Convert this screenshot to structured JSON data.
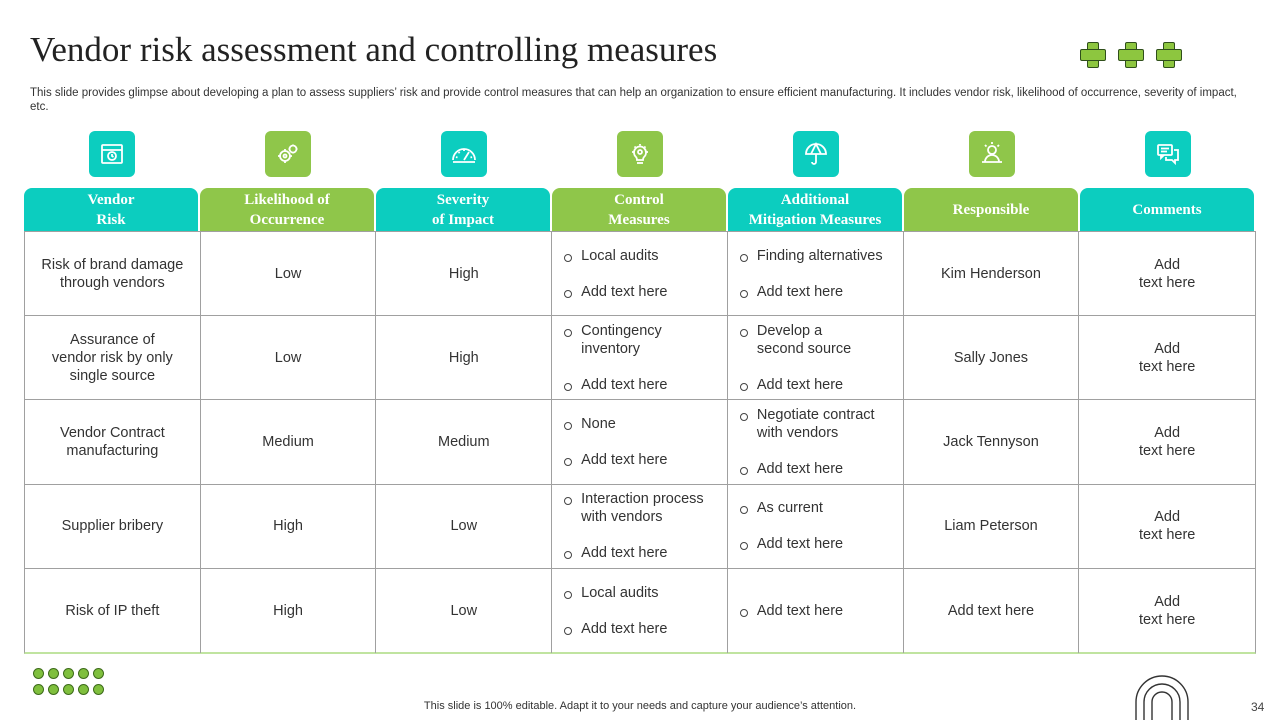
{
  "slide": {
    "title": "Vendor risk assessment and controlling measures",
    "subtitle": "This slide provides glimpse about developing a plan to assess suppliers’ risk and provide control measures that can help an organization to ensure efficient manufacturing. It includes vendor risk, likelihood of occurrence, severity of impact, etc.",
    "footer": "This slide is 100% editable. Adapt it to your needs and capture your audience’s attention.",
    "page_number": "34"
  },
  "colors": {
    "teal": "#0ccdbf",
    "green": "#8fc64a"
  },
  "columns": [
    {
      "label": "Vendor\nRisk",
      "color": "teal",
      "icon": "store-icon"
    },
    {
      "label": "Likelihood of\nOccurrence",
      "color": "green",
      "icon": "gears-icon"
    },
    {
      "label": "Severity\nof Impact",
      "color": "teal",
      "icon": "gauge-icon"
    },
    {
      "label": "Control\nMeasures",
      "color": "green",
      "icon": "lightbulb-gear-icon"
    },
    {
      "label": "Additional\nMitigation Measures",
      "color": "teal",
      "icon": "umbrella-icon"
    },
    {
      "label": "Responsible",
      "color": "green",
      "icon": "person-icon"
    },
    {
      "label": "Comments",
      "color": "teal",
      "icon": "chat-icon"
    }
  ],
  "rows": [
    {
      "risk": "Risk of brand damage\nthrough vendors",
      "likelihood": "Low",
      "severity": "High",
      "control": [
        "Local audits",
        "Add text here"
      ],
      "mitigation": [
        "Finding alternatives",
        "Add text here"
      ],
      "responsible": "Kim Henderson",
      "comments": "Add\ntext here"
    },
    {
      "risk": "Assurance of\nvendor risk by only\nsingle source",
      "likelihood": "Low",
      "severity": "High",
      "control": [
        "Contingency\ninventory",
        "Add text here"
      ],
      "mitigation": [
        "Develop a\nsecond source",
        "Add text here"
      ],
      "responsible": "Sally Jones",
      "comments": "Add\ntext here"
    },
    {
      "risk": "Vendor Contract\nmanufacturing",
      "likelihood": "Medium",
      "severity": "Medium",
      "control": [
        "None",
        "Add text here"
      ],
      "mitigation": [
        "Negotiate contract\nwith vendors",
        "Add text here"
      ],
      "responsible": "Jack Tennyson",
      "comments": "Add\ntext here"
    },
    {
      "risk": "Supplier bribery",
      "likelihood": "High",
      "severity": "Low",
      "control": [
        "Interaction process\nwith vendors",
        "Add text here"
      ],
      "mitigation": [
        "As current",
        "Add text here"
      ],
      "responsible": "Liam Peterson",
      "comments": "Add\ntext here"
    },
    {
      "risk": "Risk of IP theft",
      "likelihood": "High",
      "severity": "Low",
      "control": [
        "Local audits",
        "Add text here"
      ],
      "mitigation": [
        "Add text here"
      ],
      "responsible": "Add text here",
      "comments": "Add\ntext here"
    }
  ]
}
